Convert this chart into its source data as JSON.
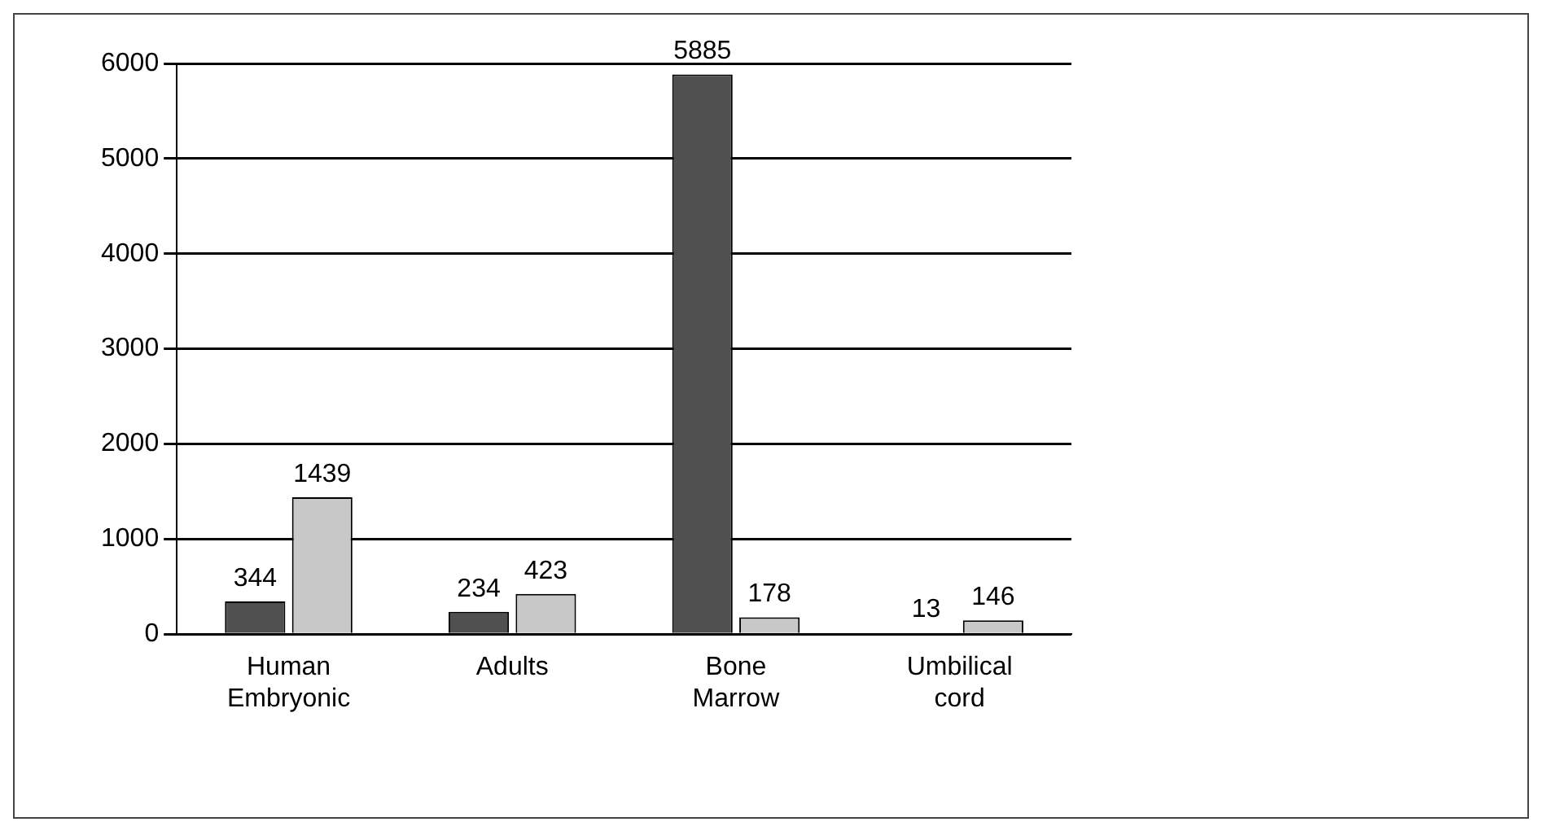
{
  "chart_data": {
    "type": "bar",
    "categories": [
      "Human Embryonic",
      "Adults",
      "Bone Marrow",
      "Umbilical cord"
    ],
    "series": [
      {
        "color": "#505050",
        "values": [
          344,
          234,
          5885,
          13
        ]
      },
      {
        "color": "#c8c8c8",
        "values": [
          1439,
          423,
          178,
          146
        ]
      }
    ],
    "ylim": [
      0,
      6000
    ],
    "yticks": [
      0,
      1000,
      2000,
      3000,
      4000,
      5000,
      6000
    ],
    "grid": "y",
    "data_labels": true,
    "legend": false
  }
}
